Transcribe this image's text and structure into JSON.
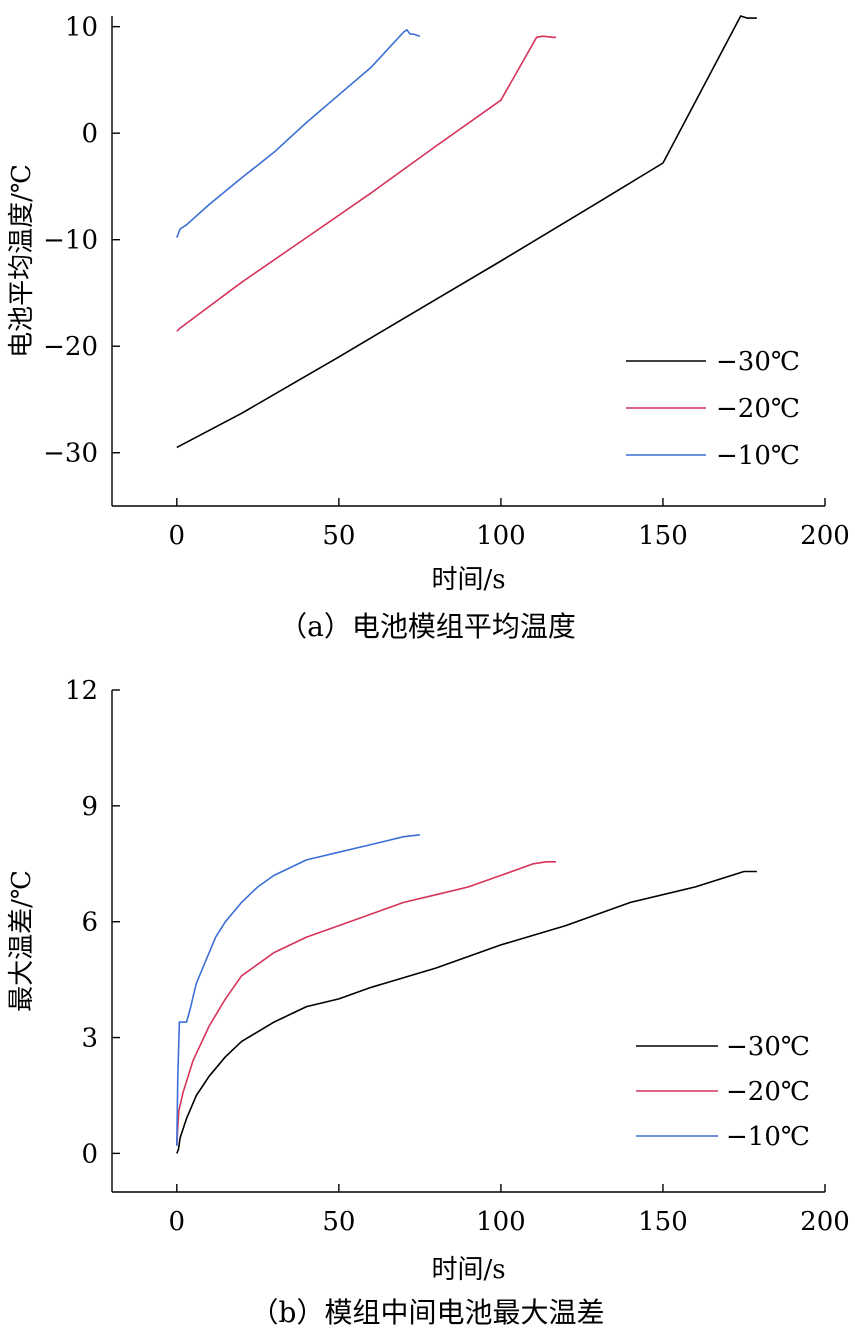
{
  "chart_data": [
    {
      "type": "line",
      "caption": "（a）电池模组平均温度",
      "xlabel": "时间/s",
      "ylabel": "电池平均温度/℃",
      "xlim": [
        -20,
        200
      ],
      "ylim": [
        -35,
        11
      ],
      "xticks": [
        0,
        50,
        100,
        150,
        200
      ],
      "yticks": [
        -30,
        -20,
        -10,
        0,
        10
      ],
      "ytick_labels": [
        "−30",
        "−20",
        "−10",
        "0",
        "10"
      ],
      "grid": false,
      "legend_position": "bottom-right",
      "series": [
        {
          "name": "−30℃",
          "color": "#000000",
          "x": [
            0,
            20,
            50,
            80,
            100,
            130,
            150,
            174,
            176,
            179
          ],
          "y": [
            -29.5,
            -26.3,
            -21.0,
            -15.6,
            -12.0,
            -6.5,
            -2.8,
            11.0,
            10.8,
            10.8
          ]
        },
        {
          "name": "−20℃",
          "color": "#d6335a",
          "x": [
            0,
            1,
            20,
            40,
            60,
            80,
            100,
            111,
            113,
            116,
            117
          ],
          "y": [
            -18.6,
            -18.3,
            -14.0,
            -9.8,
            -5.6,
            -1.2,
            3.1,
            9.0,
            9.1,
            9.0,
            9.0
          ]
        },
        {
          "name": "−10℃",
          "color": "#3b6fd6",
          "x": [
            0,
            1,
            3,
            10,
            20,
            30,
            40,
            50,
            60,
            70,
            71,
            72,
            73,
            75
          ],
          "y": [
            -9.8,
            -9.0,
            -8.6,
            -6.7,
            -4.2,
            -1.8,
            1.0,
            3.6,
            6.2,
            9.5,
            9.7,
            9.3,
            9.3,
            9.1
          ]
        }
      ]
    },
    {
      "type": "line",
      "caption": "（b）模组中间电池最大温差",
      "xlabel": "时间/s",
      "ylabel": "最大温差/℃",
      "xlim": [
        -20,
        200
      ],
      "ylim": [
        -1,
        12
      ],
      "xticks": [
        0,
        50,
        100,
        150,
        200
      ],
      "yticks": [
        0,
        3,
        6,
        9,
        12
      ],
      "ytick_labels": [
        "0",
        "3",
        "6",
        "9",
        "12"
      ],
      "grid": false,
      "legend_position": "bottom-right",
      "series": [
        {
          "name": "−30℃",
          "color": "#000000",
          "x": [
            0,
            0.5,
            1,
            3,
            6,
            10,
            15,
            20,
            30,
            40,
            50,
            60,
            80,
            100,
            120,
            140,
            160,
            175,
            179
          ],
          "y": [
            0,
            0.1,
            0.4,
            0.9,
            1.5,
            2.0,
            2.5,
            2.9,
            3.4,
            3.8,
            4.0,
            4.3,
            4.8,
            5.4,
            5.9,
            6.5,
            6.9,
            7.3,
            7.3
          ]
        },
        {
          "name": "−20℃",
          "color": "#d6335a",
          "x": [
            0,
            0.3,
            0.6,
            2,
            5,
            10,
            15,
            20,
            25,
            30,
            40,
            50,
            60,
            70,
            80,
            90,
            100,
            110,
            114,
            117
          ],
          "y": [
            0.2,
            0.7,
            1.1,
            1.6,
            2.4,
            3.3,
            4.0,
            4.6,
            4.9,
            5.2,
            5.6,
            5.9,
            6.2,
            6.5,
            6.7,
            6.9,
            7.2,
            7.5,
            7.55,
            7.55
          ]
        },
        {
          "name": "−10℃",
          "color": "#3b6fd6",
          "x": [
            0,
            0.3,
            0.8,
            3,
            4,
            6,
            8,
            10,
            12,
            15,
            20,
            25,
            30,
            40,
            50,
            60,
            65,
            70,
            75
          ],
          "y": [
            0.2,
            2.0,
            3.4,
            3.4,
            3.7,
            4.4,
            4.8,
            5.2,
            5.6,
            6.0,
            6.5,
            6.9,
            7.2,
            7.6,
            7.8,
            8.0,
            8.1,
            8.2,
            8.25
          ]
        }
      ]
    }
  ]
}
